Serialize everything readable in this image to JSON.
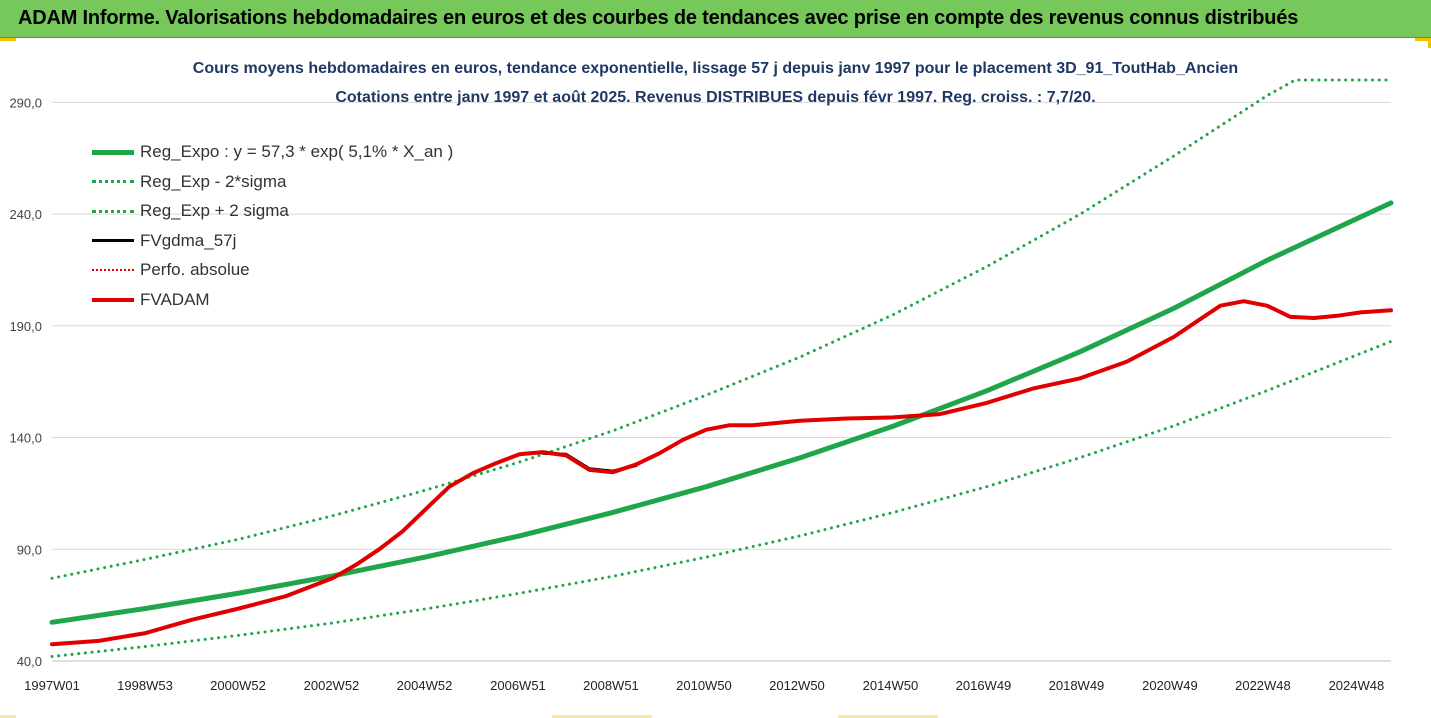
{
  "header": {
    "title": "ADAM Informe. Valorisations hebdomadaires en euros et des courbes de tendances avec prise en compte des revenus connus distribués"
  },
  "chart_data": {
    "type": "line",
    "title": "Cours moyens hebdomadaires en euros, tendance exponentielle, lissage 57 j depuis janv 1997 pour le placement 3D_91_ToutHab_Ancien",
    "subtitle": "Cotations entre janv 1997 et août 2025. Revenus DISTRIBUES depuis févr 1997. Reg. croiss. : 7,7/20.",
    "xlabel": "",
    "ylabel": "",
    "ylim": [
      40,
      300
    ],
    "yticks": [
      40.0,
      90.0,
      140.0,
      190.0,
      240.0,
      290.0
    ],
    "ytick_labels": [
      "40,0",
      "90,0",
      "140,0",
      "190,0",
      "240,0",
      "290,0"
    ],
    "xlim": [
      1997.0,
      2025.65
    ],
    "xticks": [
      1997.0,
      1998.99,
      2000.98,
      2002.98,
      2004.97,
      2006.97,
      2008.96,
      2010.95,
      2012.94,
      2014.94,
      2016.93,
      2018.92,
      2020.92,
      2022.91,
      2024.91
    ],
    "xtick_labels": [
      "1997W01",
      "1998W53",
      "2000W52",
      "2002W52",
      "2004W52",
      "2006W51",
      "2008W51",
      "2010W50",
      "2012W50",
      "2014W50",
      "2016W49",
      "2018W49",
      "2020W49",
      "2022W48",
      "2024W48"
    ],
    "grid": true,
    "legend_position": "top-left",
    "series": [
      {
        "name": "Reg_Expo : y = 57,3 * exp( 5,1% *  X_an )",
        "color": "#1fa64a",
        "style": "solid",
        "width": 5,
        "x": [
          1997.0,
          1999.0,
          2001.0,
          2003.0,
          2005.0,
          2007.0,
          2009.0,
          2011.0,
          2013.0,
          2015.0,
          2017.0,
          2019.0,
          2021.0,
          2023.0,
          2025.65
        ],
        "values": [
          57.3,
          63.5,
          70.4,
          78.1,
          86.6,
          96.0,
          106.5,
          118.0,
          130.9,
          145.1,
          160.9,
          178.4,
          197.8,
          219.3,
          245.0
        ]
      },
      {
        "name": "Reg_Exp - 2*sigma",
        "color": "#1fa64a",
        "style": "dotted",
        "width": 3,
        "x": [
          1997.0,
          1999.0,
          2001.0,
          2003.0,
          2005.0,
          2007.0,
          2009.0,
          2011.0,
          2013.0,
          2015.0,
          2017.0,
          2019.0,
          2021.0,
          2023.0,
          2025.65
        ],
        "values": [
          42.0,
          46.5,
          51.5,
          57.0,
          63.3,
          70.3,
          77.9,
          86.5,
          96.0,
          106.5,
          118.0,
          131.0,
          145.2,
          161.0,
          183.0
        ]
      },
      {
        "name": "Reg_Exp + 2 sigma",
        "color": "#1fa64a",
        "style": "dotted",
        "width": 3,
        "x": [
          1997.0,
          1999.0,
          2001.0,
          2003.0,
          2005.0,
          2007.0,
          2009.0,
          2011.0,
          2013.0,
          2015.0,
          2017.0,
          2019.0,
          2021.0,
          2023.0,
          2023.6,
          2025.65
        ],
        "values": [
          77.0,
          85.5,
          94.5,
          105.0,
          116.5,
          129.0,
          143.0,
          159.0,
          176.0,
          195.0,
          216.5,
          240.0,
          266.0,
          293.0,
          300.0,
          300.0
        ]
      },
      {
        "name": "FVgdma_57j",
        "color": "#000000",
        "style": "solid",
        "width": 3,
        "x": [
          2007.5,
          2008.0,
          2008.5,
          2009.0,
          2009.5
        ],
        "values": [
          133.0,
          132.5,
          126.0,
          125.0,
          127.5
        ]
      },
      {
        "name": "Perfo. absolue",
        "color": "#e00000",
        "style": "dotted",
        "width": 2,
        "x": [],
        "values": []
      },
      {
        "name": "FVADAM",
        "color": "#e00000",
        "style": "solid",
        "width": 4,
        "x": [
          1997.0,
          1998.0,
          1999.0,
          2000.0,
          2001.0,
          2002.0,
          2003.0,
          2003.5,
          2004.0,
          2004.5,
          2005.0,
          2005.5,
          2006.0,
          2006.5,
          2007.0,
          2007.5,
          2008.0,
          2008.5,
          2009.0,
          2009.5,
          2010.0,
          2010.5,
          2011.0,
          2011.5,
          2012.0,
          2013.0,
          2014.0,
          2015.0,
          2016.0,
          2017.0,
          2018.0,
          2019.0,
          2020.0,
          2021.0,
          2021.5,
          2022.0,
          2022.5,
          2023.0,
          2023.5,
          2024.0,
          2024.5,
          2025.0,
          2025.65
        ],
        "values": [
          47.5,
          49.0,
          52.5,
          58.5,
          63.5,
          69.0,
          77.0,
          83.0,
          90.0,
          98.0,
          108.0,
          118.0,
          124.0,
          128.5,
          132.5,
          133.5,
          132.0,
          125.5,
          124.5,
          128.0,
          133.0,
          139.0,
          143.5,
          145.5,
          145.5,
          147.5,
          148.5,
          149.0,
          150.5,
          155.5,
          162.0,
          166.5,
          174.0,
          185.0,
          192.0,
          199.0,
          201.0,
          199.0,
          194.0,
          193.5,
          194.5,
          196.0,
          197.0
        ]
      }
    ]
  }
}
